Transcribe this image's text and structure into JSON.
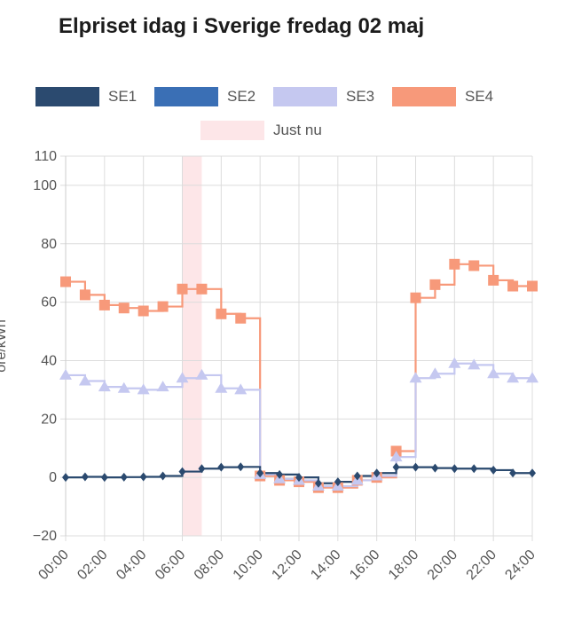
{
  "title": "Elpriset idag i Sverige fredag 02 maj",
  "legend": [
    {
      "name": "SE1",
      "color": "#2b4a6f"
    },
    {
      "name": "SE2",
      "color": "#3a6fb5"
    },
    {
      "name": "SE3",
      "color": "#c5c8f0"
    },
    {
      "name": "SE4",
      "color": "#f7997a"
    }
  ],
  "now_label": "Just nu",
  "now_color": "#fde6e8",
  "chart_data": {
    "type": "line",
    "step": true,
    "x": [
      "00:00",
      "01:00",
      "02:00",
      "03:00",
      "04:00",
      "05:00",
      "06:00",
      "07:00",
      "08:00",
      "09:00",
      "10:00",
      "11:00",
      "12:00",
      "13:00",
      "14:00",
      "15:00",
      "16:00",
      "17:00",
      "18:00",
      "19:00",
      "20:00",
      "21:00",
      "22:00",
      "23:00",
      "24:00"
    ],
    "x_tick_labels": [
      "00:00",
      "02:00",
      "04:00",
      "06:00",
      "08:00",
      "10:00",
      "12:00",
      "14:00",
      "16:00",
      "18:00",
      "20:00",
      "22:00",
      "24:00"
    ],
    "y_tick_labels": [
      "110",
      "100",
      "80",
      "60",
      "40",
      "20",
      "0",
      "−20"
    ],
    "ylim": [
      -20,
      110
    ],
    "ylabel": "öre/kWh",
    "now_range": [
      "06:00",
      "07:00"
    ],
    "grid": true,
    "legend_position": "top",
    "series": [
      {
        "name": "SE1",
        "color": "#2b4a6f",
        "marker": "diamond",
        "values": [
          0,
          0.2,
          0,
          0.1,
          0.2,
          0.5,
          2,
          3,
          3.5,
          3.6,
          1.5,
          1,
          0,
          -2,
          -1.5,
          0.5,
          1.5,
          3.5,
          3.5,
          3.2,
          3,
          3,
          2.5,
          1.5,
          1.5
        ]
      },
      {
        "name": "SE2",
        "color": "#3a6fb5",
        "marker": "circle",
        "values": [
          0,
          0.2,
          0,
          0.1,
          0.2,
          0.5,
          2,
          3,
          3.5,
          3.6,
          1.5,
          1,
          0,
          -2,
          -1.5,
          0.5,
          1.5,
          3.5,
          3.5,
          3.2,
          3,
          3,
          2.5,
          1.5,
          1.5
        ]
      },
      {
        "name": "SE3",
        "color": "#c5c8f0",
        "marker": "triangle",
        "values": [
          35,
          33,
          31,
          30.5,
          30,
          31,
          34,
          35,
          30.5,
          30,
          1,
          -0.5,
          -1,
          -3,
          -3,
          -1,
          0.5,
          7,
          34,
          35.5,
          39,
          38.5,
          35.5,
          34,
          34
        ]
      },
      {
        "name": "SE4",
        "color": "#f7997a",
        "marker": "square",
        "values": [
          67,
          62.5,
          59,
          58,
          57,
          58.5,
          64.5,
          64.5,
          56,
          54.5,
          0.5,
          -1,
          -1.5,
          -3.5,
          -3.5,
          -1,
          0,
          9,
          61.5,
          66,
          73,
          72.5,
          67.5,
          65.5,
          65.5
        ]
      }
    ]
  }
}
